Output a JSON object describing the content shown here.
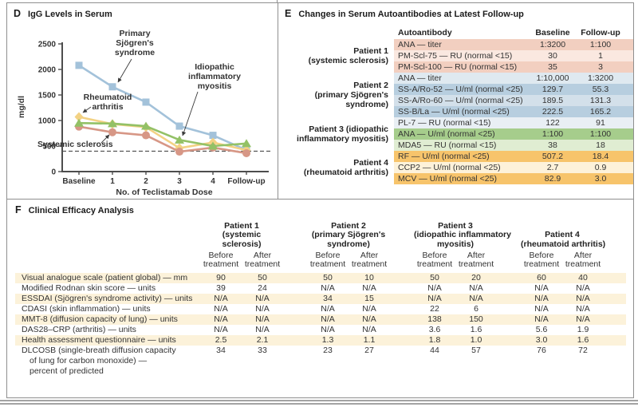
{
  "figure": {
    "panel_letters": {
      "d": "D",
      "e": "E",
      "f": "F"
    }
  },
  "chart_data": [
    {
      "type": "line",
      "panel": "D",
      "title": "IgG Levels in Serum",
      "ylabel": "mg/dl",
      "xlabel": "No. of Teclistamab Dose",
      "ylim": [
        0,
        2500
      ],
      "yticks": [
        0,
        500,
        1000,
        1500,
        2000,
        2500
      ],
      "categories": [
        "Baseline",
        "1",
        "2",
        "3",
        "4",
        "Follow-up"
      ],
      "reference_line": 400,
      "grid": false,
      "legend": "inline-annotations",
      "series": [
        {
          "name": "Primary Sjögren's syndrome",
          "marker": "square",
          "color": "#a3c2da",
          "values": [
            2080,
            1660,
            1360,
            890,
            710,
            420
          ]
        },
        {
          "name": "Rheumatoid arthritis",
          "marker": "diamond",
          "color": "#f3d284",
          "values": [
            1070,
            930,
            870,
            460,
            570,
            420
          ]
        },
        {
          "name": "Systemic sclerosis",
          "marker": "circle",
          "color": "#d79786",
          "values": [
            880,
            770,
            710,
            390,
            470,
            360
          ]
        },
        {
          "name": "Idiopathic inflammatory myositis",
          "marker": "triangle",
          "color": "#93c166",
          "values": [
            950,
            940,
            890,
            620,
            500,
            550
          ]
        }
      ],
      "annotations": [
        {
          "lines": [
            "Primary",
            "Sjögren's",
            "syndrome"
          ],
          "x": 152,
          "y": 20,
          "lh": 12,
          "anchor": "middle",
          "leader": [
            148,
            49,
            131,
            78
          ]
        },
        {
          "lines": [
            "Idiopathic",
            "inflammatory",
            "myositis"
          ],
          "x": 252,
          "y": 62,
          "lh": 12,
          "anchor": "middle",
          "leader": [
            231,
            90,
            212,
            145
          ]
        },
        {
          "lines": [
            "Rheumatoid",
            "arthritis"
          ],
          "x": 118,
          "y": 100,
          "lh": 12,
          "anchor": "middle",
          "leader": [
            97,
            109,
            87,
            116
          ]
        },
        {
          "lines": [
            "Systemic sclerosis"
          ],
          "x": 30,
          "y": 159,
          "lh": 12,
          "anchor": "start",
          "leader": [
            110,
            154,
            120,
            144
          ]
        }
      ]
    },
    {
      "type": "table",
      "panel": "E",
      "title": "Changes in Serum Autoantibodies at Latest Follow-up",
      "columns": [
        "Autoantibody",
        "Baseline",
        "Follow-up"
      ],
      "row_groups": [
        {
          "patient_lines": [
            "Patient 1",
            "(systemic sclerosis)"
          ],
          "rows": [
            {
              "cells": [
                "ANA — titer",
                "1:3200",
                "1:100"
              ],
              "color": "#f2cfc0"
            },
            {
              "cells": [
                "PM-Scl-75 — RU (normal <15)",
                "30",
                "1"
              ],
              "color": "#fae8e0"
            },
            {
              "cells": [
                "PM-Scl-100 — RU (normal <15)",
                "35",
                "3"
              ],
              "color": "#f2cfc0"
            }
          ]
        },
        {
          "patient_lines": [
            "Patient 2",
            "(primary Sjögren's",
            "syndrome)"
          ],
          "rows": [
            {
              "cells": [
                "ANA — titer",
                "1:10,000",
                "1:3200"
              ],
              "color": "#dfe9f0"
            },
            {
              "cells": [
                "SS-A/Ro-52 — U/ml (normal <25)",
                "129.7",
                "55.3"
              ],
              "color": "#b7cedf"
            },
            {
              "cells": [
                "SS-A/Ro-60 — U/ml (normal <25)",
                "189.5",
                "131.3"
              ],
              "color": "#d3e0ea"
            },
            {
              "cells": [
                "SS-B/La — U/ml (normal <25)",
                "222.5",
                "165.2"
              ],
              "color": "#b7cedf"
            }
          ]
        },
        {
          "patient_lines": [
            "Patient 3 (idiopathic",
            "inflammatory myositis)"
          ],
          "rows": [
            {
              "cells": [
                "PL-7 — RU (normal <15)",
                "122",
                "91"
              ],
              "color": "#e9eff4"
            },
            {
              "cells": [
                "ANA — U/ml (normal <25)",
                "1:100",
                "1:100"
              ],
              "color": "#a6cd8c"
            },
            {
              "cells": [
                "MDA5 — RU (normal <15)",
                "38",
                "18"
              ],
              "color": "#e0edd2"
            }
          ]
        },
        {
          "patient_lines": [
            "Patient 4",
            "(rheumatoid arthritis)"
          ],
          "rows": [
            {
              "cells": [
                "RF — U/ml (normal <25)",
                "507.2",
                "18.4"
              ],
              "color": "#f7c46b"
            },
            {
              "cells": [
                "CCP2 — U/ml (normal <25)",
                "2.7",
                "0.9"
              ],
              "color": "#fdf2da"
            },
            {
              "cells": [
                "MCV — U/ml (normal <25)",
                "82.9",
                "3.0"
              ],
              "color": "#f7c46b"
            }
          ]
        }
      ]
    },
    {
      "type": "table",
      "panel": "F",
      "title": "Clinical Efficacy Analysis",
      "stripe_color": "#fcf2da",
      "column_groups": [
        {
          "name_lines": [
            "Patient 1",
            "(systemic",
            "sclerosis)"
          ],
          "subcolumns": [
            [
              "Before",
              "treatment"
            ],
            [
              "After",
              "treatment"
            ]
          ]
        },
        {
          "name_lines": [
            "Patient 2",
            "(primary Sjögren's",
            "syndrome)"
          ],
          "subcolumns": [
            [
              "Before",
              "treatment"
            ],
            [
              "After",
              "treatment"
            ]
          ]
        },
        {
          "name_lines": [
            "Patient 3",
            "(idiopathic inflammatory",
            "myositis)"
          ],
          "subcolumns": [
            [
              "Before",
              "treatment"
            ],
            [
              "After",
              "treatment"
            ]
          ]
        },
        {
          "name_lines": [
            "Patient 4",
            "(rheumatoid arthritis)"
          ],
          "subcolumns": [
            [
              "Before",
              "treatment"
            ],
            [
              "After",
              "treatment"
            ]
          ]
        }
      ],
      "rows": [
        {
          "label_lines": [
            "Visual analogue scale (patient global) — mm"
          ],
          "values": [
            "90",
            "50",
            "50",
            "10",
            "50",
            "20",
            "60",
            "40"
          ],
          "striped": true
        },
        {
          "label_lines": [
            "Modified Rodnan skin score — units"
          ],
          "values": [
            "39",
            "24",
            "N/A",
            "N/A",
            "N/A",
            "N/A",
            "N/A",
            "N/A"
          ],
          "striped": false
        },
        {
          "label_lines": [
            "ESSDAI (Sjögren's syndrome activity) — units"
          ],
          "values": [
            "N/A",
            "N/A",
            "34",
            "15",
            "N/A",
            "N/A",
            "N/A",
            "N/A"
          ],
          "striped": true
        },
        {
          "label_lines": [
            "CDASI (skin inflammation) — units"
          ],
          "values": [
            "N/A",
            "N/A",
            "N/A",
            "N/A",
            "22",
            "6",
            "N/A",
            "N/A"
          ],
          "striped": false
        },
        {
          "label_lines": [
            "MMT-8 (diffusion capacity of lung) — units"
          ],
          "values": [
            "N/A",
            "N/A",
            "N/A",
            "N/A",
            "138",
            "150",
            "N/A",
            "N/A"
          ],
          "striped": true
        },
        {
          "label_lines": [
            "DAS28–CRP (arthritis) — units"
          ],
          "values": [
            "N/A",
            "N/A",
            "N/A",
            "N/A",
            "3.6",
            "1.6",
            "5.6",
            "1.9"
          ],
          "striped": false
        },
        {
          "label_lines": [
            "Health assessment questionnaire — units"
          ],
          "values": [
            "2.5",
            "2.1",
            "1.3",
            "1.1",
            "1.8",
            "1.0",
            "3.0",
            "1.6"
          ],
          "striped": true
        },
        {
          "label_lines": [
            "DLCOSB (single-breath diffusion capacity",
            "of lung for carbon monoxide) —",
            "percent of predicted"
          ],
          "values": [
            "34",
            "33",
            "23",
            "27",
            "44",
            "57",
            "76",
            "72"
          ],
          "striped": false
        }
      ]
    }
  ]
}
